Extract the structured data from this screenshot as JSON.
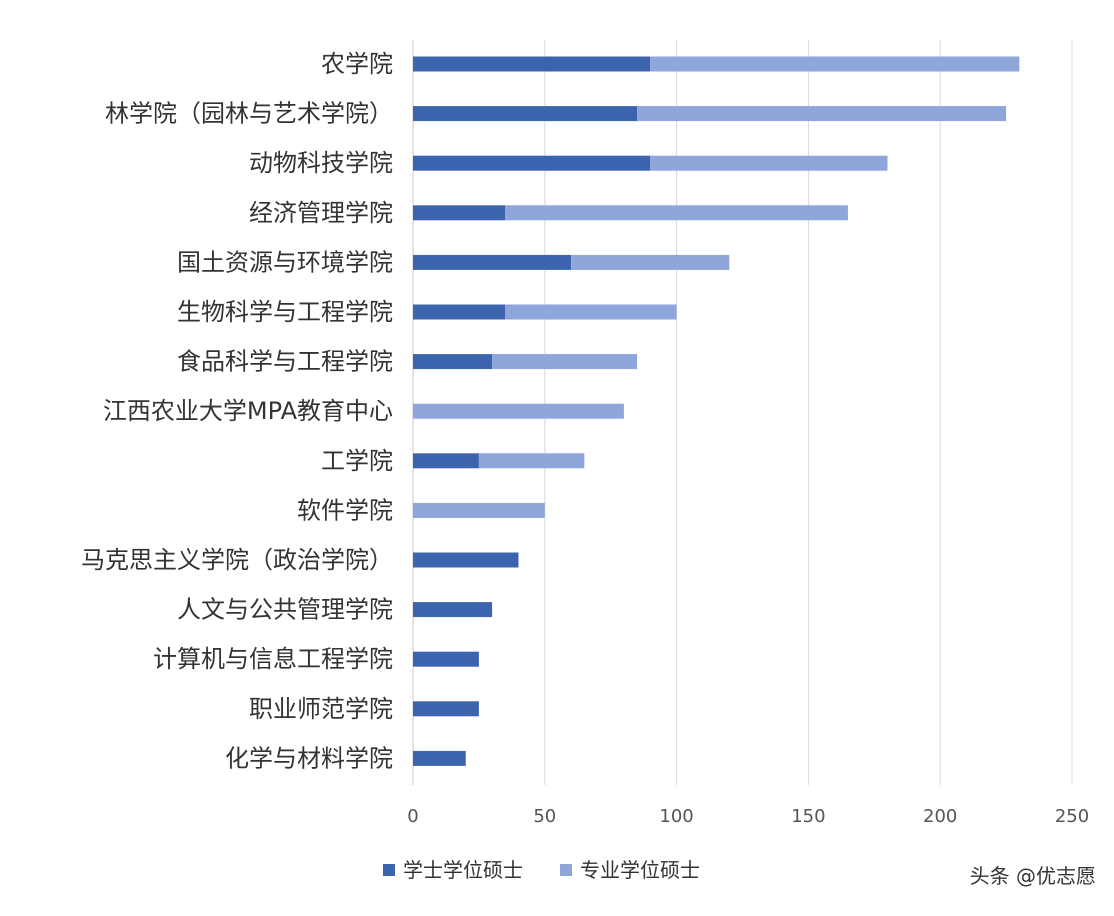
{
  "chart_data": {
    "type": "bar",
    "orientation": "horizontal",
    "stacked": true,
    "categories": [
      "农学院",
      "林学院（园林与艺术学院）",
      "动物科技学院",
      "经济管理学院",
      "国土资源与环境学院",
      "生物科学与工程学院",
      "食品科学与工程学院",
      "江西农业大学MPA教育中心",
      "工学院",
      "软件学院",
      "马克思主义学院（政治学院）",
      "人文与公共管理学院",
      "计算机与信息工程学院",
      "职业师范学院",
      "化学与材料学院"
    ],
    "series": [
      {
        "name": "学士学位硕士",
        "color": "#3c63ad",
        "values": [
          90,
          85,
          90,
          35,
          60,
          35,
          30,
          0,
          25,
          0,
          40,
          30,
          25,
          25,
          20
        ]
      },
      {
        "name": "专业学位硕士",
        "color": "#8ea6d9",
        "values": [
          140,
          140,
          90,
          130,
          60,
          65,
          55,
          80,
          40,
          50,
          0,
          0,
          0,
          0,
          0
        ]
      }
    ],
    "xlim": [
      0,
      250
    ],
    "xticks": [
      "0",
      "50",
      "100",
      "150",
      "200",
      "250"
    ],
    "grid": "vertical",
    "legend": "bottom-center",
    "title": "",
    "xlabel": "",
    "ylabel": ""
  },
  "watermark": {
    "text": "头条 @优志愿"
  }
}
